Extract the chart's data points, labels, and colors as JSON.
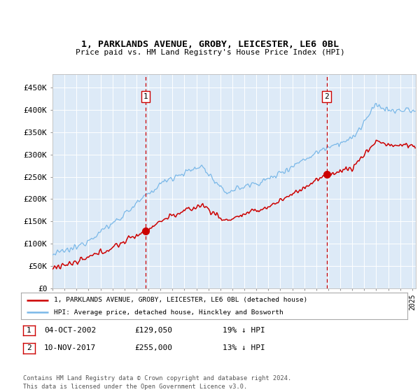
{
  "title": "1, PARKLANDS AVENUE, GROBY, LEICESTER, LE6 0BL",
  "subtitle": "Price paid vs. HM Land Registry's House Price Index (HPI)",
  "hpi_color": "#7ab8e8",
  "price_color": "#cc0000",
  "plot_bg_color": "#ddeaf7",
  "ylabel_ticks": [
    "£0",
    "£50K",
    "£100K",
    "£150K",
    "£200K",
    "£250K",
    "£300K",
    "£350K",
    "£400K",
    "£450K"
  ],
  "ytick_values": [
    0,
    50000,
    100000,
    150000,
    200000,
    250000,
    300000,
    350000,
    400000,
    450000
  ],
  "xlim_start": 1995.0,
  "xlim_end": 2025.3,
  "ylim": [
    0,
    480000
  ],
  "ann1_x": 2002.75,
  "ann1_y": 129050,
  "ann2_x": 2017.86,
  "ann2_y": 255000,
  "legend_line1": "1, PARKLANDS AVENUE, GROBY, LEICESTER, LE6 0BL (detached house)",
  "legend_line2": "HPI: Average price, detached house, Hinckley and Bosworth",
  "footnote": "Contains HM Land Registry data © Crown copyright and database right 2024.\nThis data is licensed under the Open Government Licence v3.0.",
  "table_rows": [
    {
      "num": "1",
      "date": "04-OCT-2002",
      "price": "£129,050",
      "note": "19% ↓ HPI"
    },
    {
      "num": "2",
      "date": "10-NOV-2017",
      "price": "£255,000",
      "note": "13% ↓ HPI"
    }
  ]
}
